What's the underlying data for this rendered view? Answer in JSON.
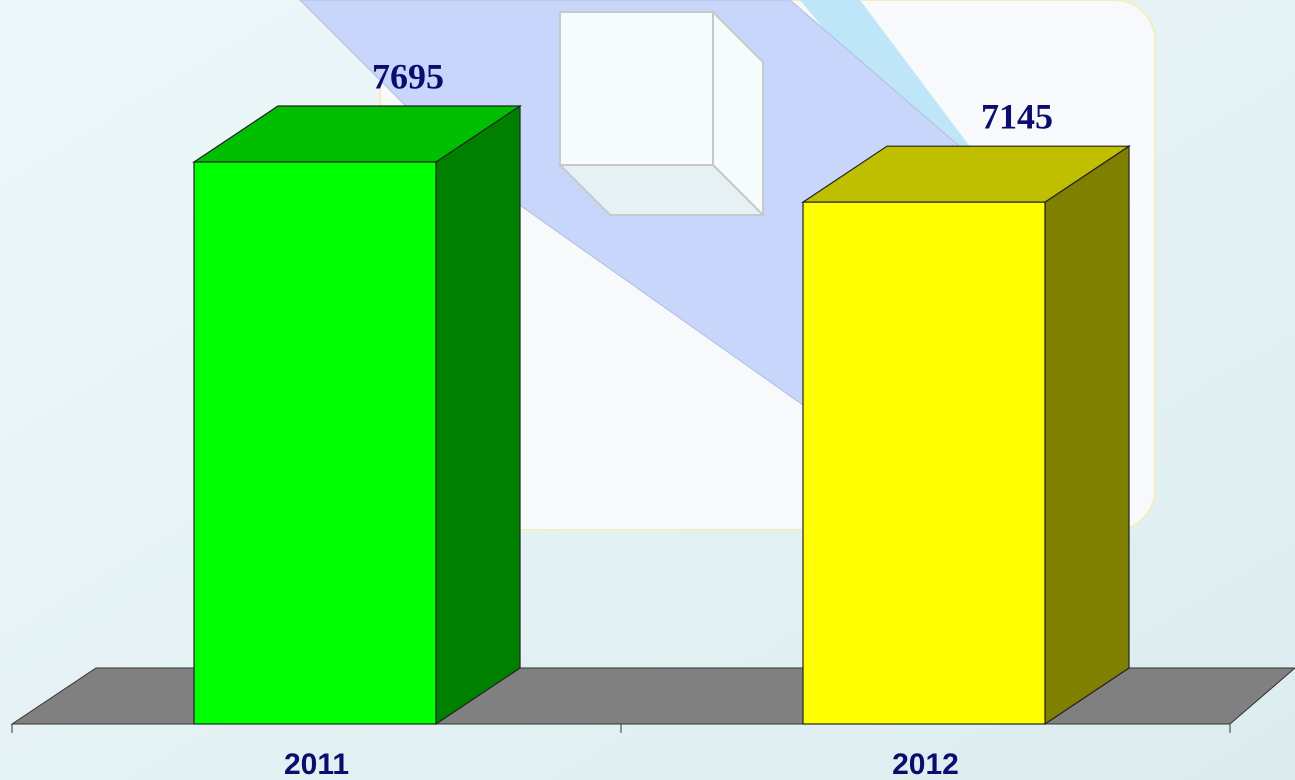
{
  "chart_data": {
    "type": "bar3d",
    "categories": [
      "2011",
      "2012"
    ],
    "values": [
      7695,
      7145
    ],
    "colors": [
      "#00ff00",
      "#ffff00"
    ]
  }
}
